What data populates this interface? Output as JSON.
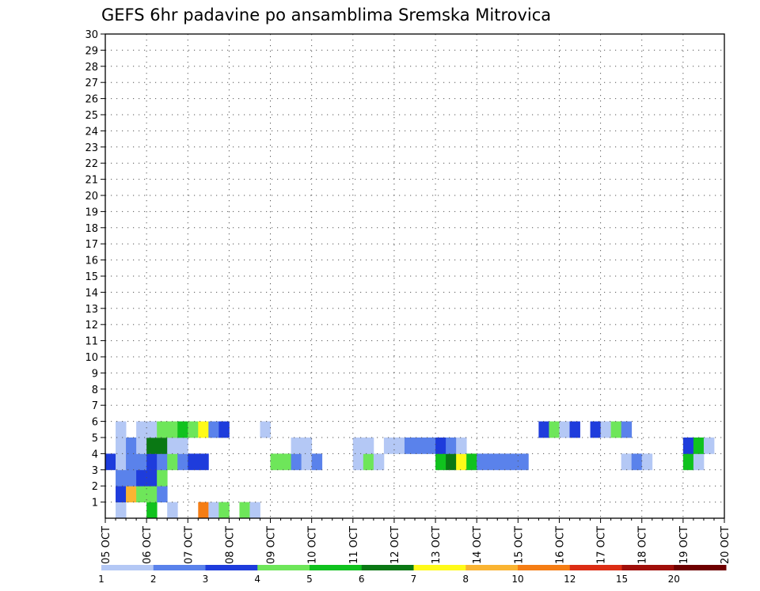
{
  "chart_data": {
    "type": "heatmap",
    "title": "GEFS 6hr padavine po ansamblima Sremska Mitrovica",
    "xlabel": "",
    "ylabel": "",
    "x_tick_labels": [
      "05 OCT",
      "06 OCT",
      "07 OCT",
      "08 OCT",
      "09 OCT",
      "10 OCT",
      "11 OCT",
      "12 OCT",
      "13 OCT",
      "14 OCT",
      "15 OCT",
      "16 OCT",
      "17 OCT",
      "18 OCT",
      "19 OCT",
      "20 OCT"
    ],
    "y_tick_labels": [
      "1",
      "2",
      "3",
      "4",
      "5",
      "6",
      "7",
      "8",
      "9",
      "10",
      "11",
      "12",
      "13",
      "14",
      "15",
      "16",
      "17",
      "18",
      "19",
      "20",
      "21",
      "22",
      "23",
      "24",
      "25",
      "26",
      "27",
      "28",
      "29",
      "30"
    ],
    "x_range_steps": [
      0,
      60
    ],
    "y_range_members": [
      0,
      30
    ],
    "grid": true,
    "colorbar": {
      "labels": [
        "1",
        "2",
        "3",
        "4",
        "5",
        "6",
        "7",
        "8",
        "10",
        "12",
        "15",
        "20"
      ],
      "colors": [
        "#b4c8f5",
        "#5a82eb",
        "#1e3cdc",
        "#6ee65a",
        "#10c21e",
        "#0a7814",
        "#fffa19",
        "#fab432",
        "#f57d14",
        "#dc2d14",
        "#a00f0a",
        "#6e0000"
      ]
    },
    "members": [
      {
        "member": 0,
        "cells": [
          [
            1,
            0
          ],
          [
            4,
            4
          ],
          [
            6,
            0
          ],
          [
            9,
            8
          ],
          [
            10,
            0
          ],
          [
            11,
            3
          ],
          [
            13,
            3
          ],
          [
            14,
            0
          ]
        ]
      },
      {
        "member": 1,
        "cells": [
          [
            1,
            2
          ],
          [
            2,
            7
          ],
          [
            3,
            3
          ],
          [
            4,
            3
          ],
          [
            5,
            1
          ]
        ]
      },
      {
        "member": 2,
        "cells": [
          [
            1,
            1
          ],
          [
            2,
            1
          ],
          [
            3,
            2
          ],
          [
            4,
            2
          ],
          [
            5,
            3
          ]
        ]
      },
      {
        "member": 3,
        "cells": [
          [
            0,
            2
          ],
          [
            1,
            0
          ],
          [
            2,
            1
          ],
          [
            3,
            1
          ],
          [
            4,
            2
          ],
          [
            5,
            1
          ],
          [
            6,
            3
          ],
          [
            7,
            1
          ],
          [
            8,
            2
          ],
          [
            9,
            2
          ],
          [
            16,
            3
          ],
          [
            17,
            3
          ],
          [
            18,
            1
          ],
          [
            19,
            0
          ],
          [
            20,
            1
          ],
          [
            24,
            0
          ],
          [
            25,
            3
          ],
          [
            26,
            0
          ],
          [
            32,
            4
          ],
          [
            33,
            5
          ],
          [
            34,
            6
          ],
          [
            35,
            4
          ],
          [
            36,
            1
          ],
          [
            37,
            1
          ],
          [
            38,
            1
          ],
          [
            39,
            1
          ],
          [
            40,
            1
          ],
          [
            50,
            0
          ],
          [
            51,
            1
          ],
          [
            52,
            0
          ],
          [
            56,
            4
          ],
          [
            57,
            0
          ]
        ]
      },
      {
        "member": 4,
        "cells": [
          [
            1,
            0
          ],
          [
            2,
            1
          ],
          [
            3,
            0
          ],
          [
            4,
            5
          ],
          [
            5,
            5
          ],
          [
            6,
            0
          ],
          [
            7,
            0
          ],
          [
            18,
            0
          ],
          [
            19,
            0
          ],
          [
            24,
            0
          ],
          [
            25,
            0
          ],
          [
            27,
            0
          ],
          [
            28,
            0
          ],
          [
            29,
            1
          ],
          [
            30,
            1
          ],
          [
            31,
            1
          ],
          [
            32,
            2
          ],
          [
            33,
            1
          ],
          [
            34,
            0
          ],
          [
            56,
            2
          ],
          [
            57,
            4
          ],
          [
            58,
            0
          ]
        ]
      },
      {
        "member": 5,
        "cells": [
          [
            1,
            0
          ],
          [
            3,
            0
          ],
          [
            4,
            0
          ],
          [
            5,
            3
          ],
          [
            6,
            3
          ],
          [
            7,
            4
          ],
          [
            8,
            3
          ],
          [
            9,
            6
          ],
          [
            10,
            1
          ],
          [
            11,
            2
          ],
          [
            15,
            0
          ],
          [
            42,
            2
          ],
          [
            43,
            3
          ],
          [
            44,
            0
          ],
          [
            45,
            2
          ],
          [
            47,
            2
          ],
          [
            48,
            0
          ],
          [
            49,
            3
          ],
          [
            50,
            1
          ]
        ]
      }
    ],
    "x_dates": [
      5,
      6,
      7,
      8,
      9,
      10,
      11,
      12,
      13,
      14,
      15,
      16,
      17,
      18,
      19,
      20
    ]
  }
}
